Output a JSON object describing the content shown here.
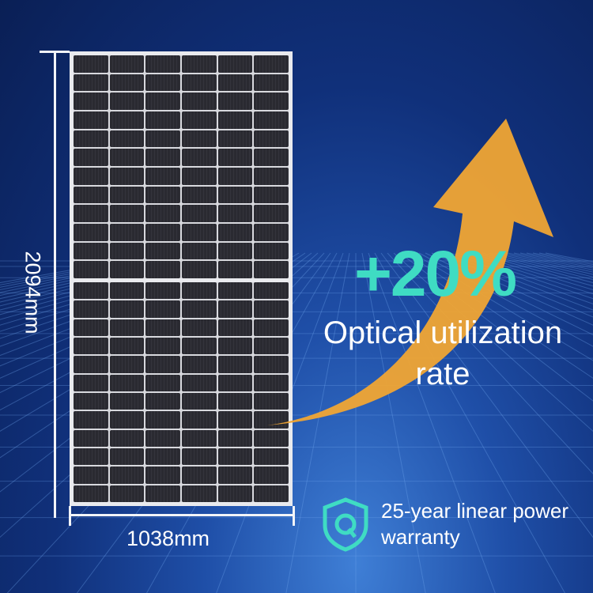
{
  "dimensions": {
    "height": "2094mm",
    "width": "1038mm"
  },
  "headline": {
    "percent": "+20%",
    "line1": "Optical utilization",
    "line2": "rate"
  },
  "warranty": {
    "icon": "shield-q-icon",
    "line1": "25-year linear power",
    "line2": "warranty"
  },
  "colors": {
    "accent": "#3fdcc3",
    "arrow": "#f0a534",
    "background": "#10307a"
  }
}
